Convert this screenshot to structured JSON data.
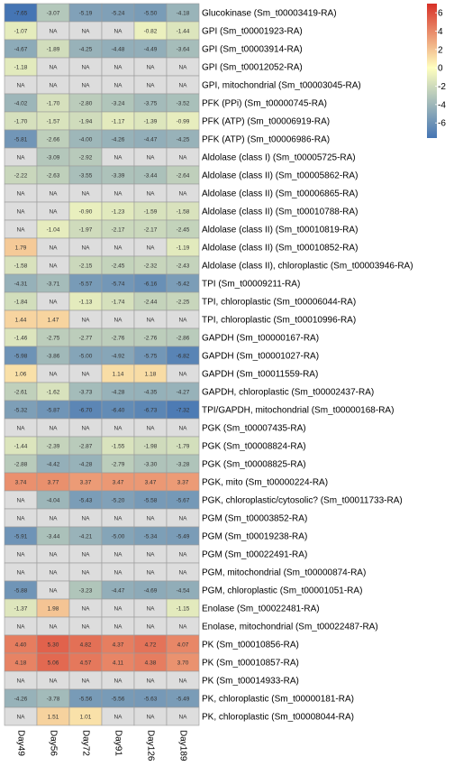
{
  "chart_data": {
    "type": "heatmap",
    "columns": [
      "Day49",
      "Day56",
      "Day72",
      "Day91",
      "Day126",
      "Day189"
    ],
    "na_label": "NA",
    "rows": [
      {
        "label": "Glucokinase (Sm_t00003419-RA)",
        "values": [
          -7.65,
          -3.07,
          -5.19,
          -5.24,
          -5.5,
          -4.18
        ]
      },
      {
        "label": "GPI (Sm_t00001923-RA)",
        "values": [
          -1.07,
          null,
          null,
          null,
          -0.82,
          -1.44
        ]
      },
      {
        "label": "GPI (Sm_t00003914-RA)",
        "values": [
          -4.67,
          -1.89,
          -4.25,
          -4.48,
          -4.49,
          -3.64
        ]
      },
      {
        "label": "GPI (Sm_t00012052-RA)",
        "values": [
          -1.18,
          null,
          null,
          null,
          null,
          null
        ]
      },
      {
        "label": "GPI, mitochondrial (Sm_t00003045-RA)",
        "values": [
          null,
          null,
          null,
          null,
          null,
          null
        ]
      },
      {
        "label": "PFK (PPi) (Sm_t00000745-RA)",
        "values": [
          -4.02,
          -1.7,
          -2.8,
          -3.24,
          -3.75,
          -3.52
        ]
      },
      {
        "label": "PFK (ATP) (Sm_t00006919-RA)",
        "values": [
          -1.7,
          -1.57,
          -1.94,
          -1.17,
          -1.39,
          -0.99
        ]
      },
      {
        "label": "PFK (ATP) (Sm_t00006986-RA)",
        "values": [
          -5.81,
          -2.66,
          -4.0,
          -4.26,
          -4.47,
          -4.25
        ]
      },
      {
        "label": "Aldolase (class I) (Sm_t00005725-RA)",
        "values": [
          null,
          -3.09,
          -2.92,
          null,
          null,
          null
        ]
      },
      {
        "label": "Aldolase (class II) (Sm_t00005862-RA)",
        "values": [
          -2.22,
          -2.63,
          -3.55,
          -3.39,
          -3.44,
          -2.64
        ]
      },
      {
        "label": "Aldolase (class II) (Sm_t00006865-RA)",
        "values": [
          null,
          null,
          null,
          null,
          null,
          null
        ]
      },
      {
        "label": "Aldolase (class II) (Sm_t00010788-RA)",
        "values": [
          null,
          null,
          -0.9,
          -1.23,
          -1.59,
          -1.58
        ]
      },
      {
        "label": "Aldolase (class II) (Sm_t00010819-RA)",
        "values": [
          null,
          -1.04,
          -1.97,
          -2.17,
          -2.17,
          -2.45
        ]
      },
      {
        "label": "Aldolase (class II) (Sm_t00010852-RA)",
        "values": [
          1.79,
          null,
          null,
          null,
          null,
          -1.19
        ]
      },
      {
        "label": "Aldolase (class II), chloroplastic (Sm_t00003946-RA)",
        "values": [
          -1.58,
          null,
          -2.15,
          -2.45,
          -2.32,
          -2.43
        ]
      },
      {
        "label": "TPI (Sm_t00009211-RA)",
        "values": [
          -4.31,
          -3.71,
          -5.57,
          -5.74,
          -6.16,
          -5.42
        ]
      },
      {
        "label": "TPI, chloroplastic (Sm_t00006044-RA)",
        "values": [
          -1.84,
          null,
          -1.13,
          -1.74,
          -2.44,
          -2.25
        ]
      },
      {
        "label": "TPI, chloroplastic (Sm_t00010996-RA)",
        "values": [
          1.44,
          1.47,
          null,
          null,
          null,
          null
        ]
      },
      {
        "label": "GAPDH (Sm_t00000167-RA)",
        "values": [
          -1.46,
          -2.75,
          -2.77,
          -2.76,
          -2.76,
          -2.86
        ]
      },
      {
        "label": "GAPDH (Sm_t00001027-RA)",
        "values": [
          -5.98,
          -3.86,
          -5.0,
          -4.92,
          -5.75,
          -6.82
        ]
      },
      {
        "label": "GAPDH (Sm_t00011559-RA)",
        "values": [
          1.06,
          null,
          null,
          1.14,
          1.18,
          null
        ]
      },
      {
        "label": "GAPDH, chloroplastic (Sm_t00002437-RA)",
        "values": [
          -2.61,
          -1.62,
          -3.73,
          -4.28,
          -4.35,
          -4.27
        ]
      },
      {
        "label": "TPI/GAPDH, mitochondrial (Sm_t00000168-RA)",
        "values": [
          -5.32,
          -5.87,
          -6.7,
          -6.4,
          -6.73,
          -7.32
        ]
      },
      {
        "label": "PGK (Sm_t00007435-RA)",
        "values": [
          null,
          null,
          null,
          null,
          null,
          null
        ]
      },
      {
        "label": "PGK (Sm_t00008824-RA)",
        "values": [
          -1.44,
          -2.39,
          -2.87,
          -1.55,
          -1.98,
          -1.79
        ]
      },
      {
        "label": "PGK (Sm_t00008825-RA)",
        "values": [
          -2.88,
          -4.42,
          -4.28,
          -2.79,
          -3.3,
          -3.28
        ]
      },
      {
        "label": "PGK, mito (Sm_t00000224-RA)",
        "values": [
          3.74,
          3.77,
          3.37,
          3.47,
          3.47,
          3.37
        ]
      },
      {
        "label": "PGK, chloroplastic/cytosolic? (Sm_t00011733-RA)",
        "values": [
          null,
          -4.04,
          -5.43,
          -5.2,
          -5.58,
          -5.67
        ]
      },
      {
        "label": "PGM (Sm_t00003852-RA)",
        "values": [
          null,
          null,
          null,
          null,
          null,
          null
        ]
      },
      {
        "label": "PGM (Sm_t00019238-RA)",
        "values": [
          -5.91,
          -3.44,
          -4.21,
          -5.0,
          -5.34,
          -5.49
        ]
      },
      {
        "label": "PGM (Sm_t00022491-RA)",
        "values": [
          null,
          null,
          null,
          null,
          null,
          null
        ]
      },
      {
        "label": "PGM, mitochondrial (Sm_t00000874-RA)",
        "values": [
          null,
          null,
          null,
          null,
          null,
          null
        ]
      },
      {
        "label": "PGM, chloroplastic (Sm_t00001051-RA)",
        "values": [
          -5.88,
          null,
          -3.23,
          -4.47,
          -4.69,
          -4.54
        ]
      },
      {
        "label": "Enolase (Sm_t00022481-RA)",
        "values": [
          -1.37,
          1.98,
          null,
          null,
          null,
          -1.15
        ]
      },
      {
        "label": "Enolase, mitochondrial (Sm_t00022487-RA)",
        "values": [
          null,
          null,
          null,
          null,
          null,
          null
        ]
      },
      {
        "label": "PK (Sm_t00010856-RA)",
        "values": [
          4.4,
          5.3,
          4.82,
          4.37,
          4.72,
          4.07
        ]
      },
      {
        "label": "PK (Sm_t00010857-RA)",
        "values": [
          4.18,
          5.06,
          4.57,
          4.11,
          4.38,
          3.7
        ]
      },
      {
        "label": "PK (Sm_t00014933-RA)",
        "values": [
          null,
          null,
          null,
          null,
          null,
          null
        ]
      },
      {
        "label": "PK, chloroplastic (Sm_t00000181-RA)",
        "values": [
          -4.26,
          -3.78,
          -5.56,
          -5.56,
          -5.63,
          -5.49
        ]
      },
      {
        "label": "PK, chloroplastic (Sm_t00008044-RA)",
        "values": [
          null,
          1.51,
          1.01,
          null,
          null,
          null
        ]
      }
    ],
    "color_scale": {
      "min": -7.65,
      "max": 7,
      "low_color": "#4575b4",
      "mid_color": "#ffffbf",
      "high_color": "#d73027",
      "na_color": "#dddddd",
      "ticks": [
        6,
        4,
        2,
        0,
        -2,
        -4,
        -6
      ],
      "tick_labels": [
        "6",
        "4",
        "2",
        "0",
        "-2",
        "-4",
        "-6"
      ]
    },
    "legend_position": "top-right"
  }
}
